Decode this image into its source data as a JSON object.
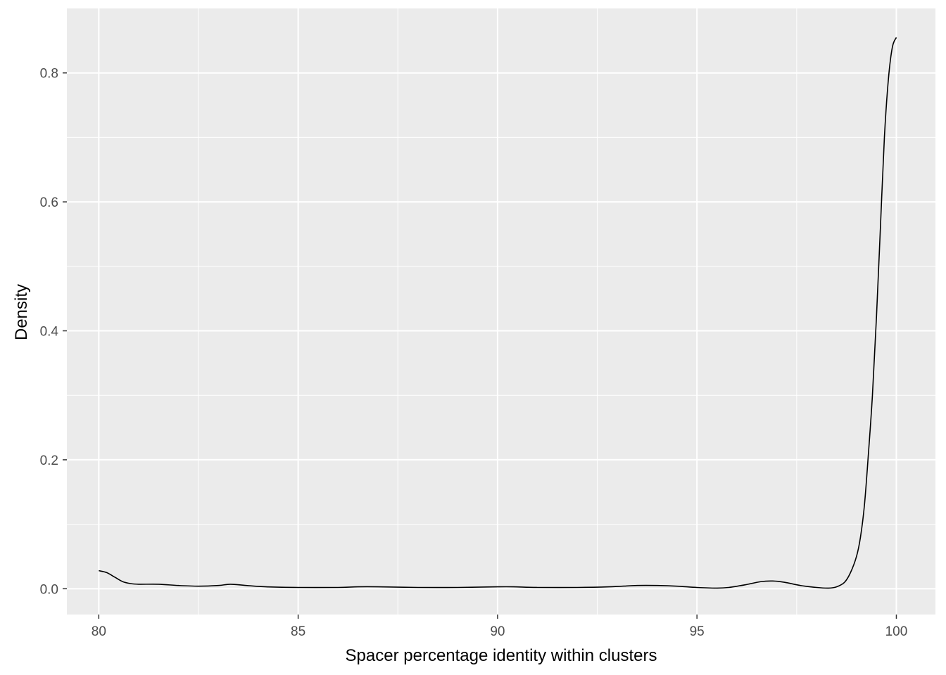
{
  "chart_data": {
    "type": "line",
    "title": "",
    "xlabel": "Spacer percentage identity within clusters",
    "ylabel": "Density",
    "xlim": [
      79.2,
      100.98
    ],
    "ylim": [
      -0.04,
      0.9
    ],
    "x_ticks": [
      80,
      85,
      90,
      95,
      100
    ],
    "x_tick_labels": [
      "80",
      "85",
      "90",
      "95",
      "100"
    ],
    "y_ticks": [
      0.0,
      0.2,
      0.4,
      0.6,
      0.8
    ],
    "y_tick_labels": [
      "0.0",
      "0.2",
      "0.4",
      "0.6",
      "0.8"
    ],
    "grid": true,
    "background": "#ebebeb",
    "grid_color": "#ffffff",
    "line_color": "#000000",
    "series": [
      {
        "x": [
          80.0,
          80.2,
          80.4,
          80.6,
          80.8,
          81.0,
          81.5,
          82.0,
          82.5,
          83.0,
          83.3,
          83.7,
          84.2,
          85.0,
          86.0,
          86.5,
          87.0,
          88.0,
          89.0,
          90.0,
          90.4,
          91.0,
          92.0,
          92.8,
          93.5,
          94.0,
          94.5,
          95.0,
          95.5,
          95.8,
          96.2,
          96.6,
          96.9,
          97.2,
          97.6,
          98.0,
          98.3,
          98.5,
          98.7,
          98.85,
          99.0,
          99.1,
          99.2,
          99.3,
          99.4,
          99.5,
          99.6,
          99.7,
          99.8,
          99.9,
          100.0
        ],
        "y": [
          0.028,
          0.025,
          0.018,
          0.011,
          0.008,
          0.007,
          0.007,
          0.005,
          0.004,
          0.005,
          0.007,
          0.005,
          0.003,
          0.002,
          0.002,
          0.003,
          0.003,
          0.002,
          0.002,
          0.003,
          0.003,
          0.002,
          0.002,
          0.003,
          0.005,
          0.005,
          0.004,
          0.002,
          0.001,
          0.002,
          0.006,
          0.011,
          0.012,
          0.01,
          0.005,
          0.002,
          0.001,
          0.003,
          0.01,
          0.025,
          0.05,
          0.08,
          0.13,
          0.21,
          0.3,
          0.42,
          0.56,
          0.7,
          0.79,
          0.84,
          0.855
        ]
      }
    ]
  }
}
